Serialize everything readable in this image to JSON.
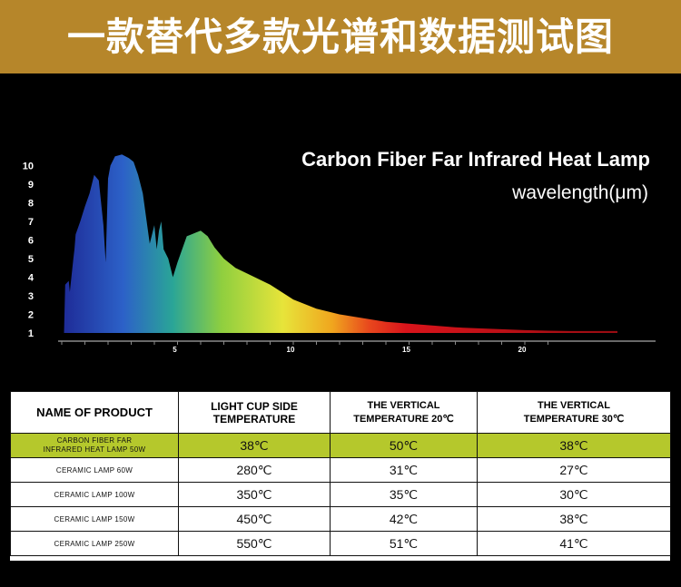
{
  "banner": {
    "title": "一款替代多款光谱和数据测试图",
    "bg": "#b6862a"
  },
  "chart_data": {
    "type": "area",
    "title": "Carbon Fiber Far Infrared Heat Lamp",
    "subtitle": "wavelength(μm)",
    "xlabel": "",
    "ylabel": "",
    "xlim": [
      0,
      24
    ],
    "ylim": [
      1,
      10
    ],
    "x_ticks": [
      5,
      10,
      15,
      20
    ],
    "y_ticks": [
      1,
      2,
      3,
      4,
      5,
      6,
      7,
      8,
      9,
      10
    ],
    "grid": false,
    "legend": "none",
    "series": [
      {
        "x": [
          0.1,
          0.15,
          0.3,
          0.35,
          0.5,
          0.55,
          0.6,
          0.8,
          1.0,
          1.2,
          1.4,
          1.6,
          1.8,
          1.9,
          2.0,
          2.1,
          2.3,
          2.6,
          2.9,
          3.1,
          3.3,
          3.5,
          3.8,
          4.0,
          4.1,
          4.2,
          4.3,
          4.4,
          4.6,
          4.8,
          5.0,
          5.2,
          5.4,
          5.6,
          5.8,
          6.0,
          6.3,
          6.6,
          7.0,
          7.5,
          8.0,
          9.0,
          10.0,
          11.0,
          12.0,
          13.0,
          14.0,
          15.0,
          16.0,
          17.0,
          18.0,
          19.0,
          20.0,
          21.0,
          22.0,
          23.0,
          24.0
        ],
        "y": [
          1.0,
          3.6,
          3.8,
          3.2,
          5.0,
          5.5,
          6.3,
          7.0,
          7.8,
          8.5,
          9.5,
          9.2,
          6.8,
          4.8,
          9.3,
          10.0,
          10.5,
          10.6,
          10.4,
          10.2,
          9.5,
          8.5,
          5.8,
          6.8,
          5.5,
          6.5,
          7.0,
          5.5,
          5.0,
          4.0,
          4.8,
          5.5,
          6.2,
          6.3,
          6.4,
          6.5,
          6.2,
          5.6,
          5.0,
          4.5,
          4.2,
          3.6,
          2.8,
          2.3,
          2.0,
          1.8,
          1.6,
          1.5,
          1.4,
          1.3,
          1.25,
          1.2,
          1.15,
          1.12,
          1.1,
          1.1,
          1.1
        ]
      }
    ],
    "color_stops": [
      {
        "x": 0,
        "color": "#1e2a96"
      },
      {
        "x": 2.5,
        "color": "#2c61c8"
      },
      {
        "x": 4.5,
        "color": "#2aa597"
      },
      {
        "x": 6.5,
        "color": "#8fcf3f"
      },
      {
        "x": 9.0,
        "color": "#e7e43a"
      },
      {
        "x": 11.0,
        "color": "#f0a61e"
      },
      {
        "x": 12.5,
        "color": "#e8471d"
      },
      {
        "x": 14.0,
        "color": "#d9141b"
      },
      {
        "x": 24.0,
        "color": "#8e0a10"
      }
    ]
  },
  "table": {
    "headers": [
      [
        "NAME OF PRODUCT"
      ],
      [
        "LIGHT CUP SIDE TEMPERATURE"
      ],
      [
        "THE VERTICAL",
        "TEMPERATURE  20℃"
      ],
      [
        "THE VERTICAL",
        "TEMPERATURE  30℃"
      ]
    ],
    "highlight_color": "#b5c82c",
    "rows": [
      {
        "name": [
          "CARBON FIBER FAR",
          "INFRARED HEAT LAMP 50W"
        ],
        "values": [
          "38℃",
          "50℃",
          "38℃"
        ],
        "highlight": true
      },
      {
        "name": [
          "CERAMIC  LAMP 60W"
        ],
        "values": [
          "280℃",
          "31℃",
          "27℃"
        ],
        "highlight": false
      },
      {
        "name": [
          "CERAMIC  LAMP 100W"
        ],
        "values": [
          "350℃",
          "35℃",
          "30℃"
        ],
        "highlight": false
      },
      {
        "name": [
          "CERAMIC  LAMP 150W"
        ],
        "values": [
          "450℃",
          "42℃",
          "38℃"
        ],
        "highlight": false
      },
      {
        "name": [
          "CERAMIC  LAMP 250W"
        ],
        "values": [
          "550℃",
          "51℃",
          "41℃"
        ],
        "highlight": false
      }
    ]
  }
}
